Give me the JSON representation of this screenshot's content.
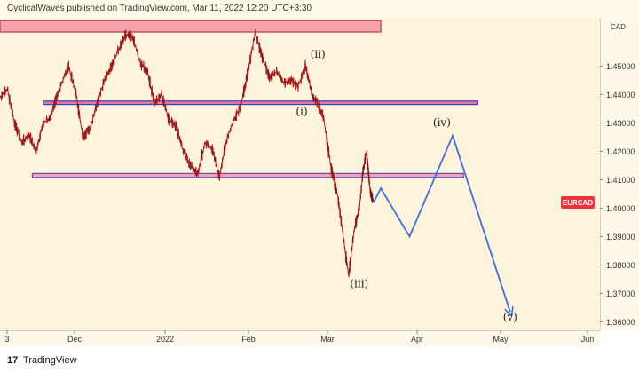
{
  "header": {
    "text": "CyclicalWaves published on TradingView.com, Mar 11, 2022 12:20 UTC+3:30"
  },
  "footer": {
    "logo": "17",
    "brand": "TradingView"
  },
  "chart_data": {
    "type": "line",
    "symbol": "EURCAD",
    "currency_label": "CAD",
    "x_ticks": [
      "3",
      "Dec",
      "2022",
      "Feb",
      "Mar",
      "Apr",
      "May",
      "Jun"
    ],
    "y_ticks": [
      1.45,
      1.44,
      1.43,
      1.42,
      1.41,
      1.4,
      1.39,
      1.38,
      1.37,
      1.36
    ],
    "y_tick_labels": [
      "1.45000",
      "1.44000",
      "1.43000",
      "1.42000",
      "1.41000",
      "1.40000",
      "1.39000",
      "1.38000",
      "1.37000",
      "1.36000"
    ],
    "ylim": [
      1.357,
      1.467
    ],
    "price_path": [
      [
        0,
        1.439
      ],
      [
        4,
        1.442
      ],
      [
        8,
        1.43
      ],
      [
        12,
        1.423
      ],
      [
        16,
        1.426
      ],
      [
        20,
        1.42
      ],
      [
        24,
        1.43
      ],
      [
        28,
        1.432
      ],
      [
        33,
        1.442
      ],
      [
        38,
        1.45
      ],
      [
        42,
        1.441
      ],
      [
        46,
        1.425
      ],
      [
        50,
        1.428
      ],
      [
        54,
        1.437
      ],
      [
        58,
        1.445
      ],
      [
        62,
        1.45
      ],
      [
        66,
        1.456
      ],
      [
        70,
        1.461
      ],
      [
        74,
        1.46
      ],
      [
        78,
        1.451
      ],
      [
        82,
        1.448
      ],
      [
        86,
        1.437
      ],
      [
        90,
        1.44
      ],
      [
        94,
        1.431
      ],
      [
        98,
        1.429
      ],
      [
        102,
        1.42
      ],
      [
        106,
        1.415
      ],
      [
        110,
        1.412
      ],
      [
        114,
        1.423
      ],
      [
        118,
        1.421
      ],
      [
        122,
        1.411
      ],
      [
        126,
        1.424
      ],
      [
        130,
        1.431
      ],
      [
        134,
        1.436
      ],
      [
        138,
        1.448
      ],
      [
        142,
        1.462
      ],
      [
        146,
        1.453
      ],
      [
        150,
        1.446
      ],
      [
        154,
        1.448
      ],
      [
        158,
        1.444
      ],
      [
        162,
        1.445
      ],
      [
        166,
        1.443
      ],
      [
        170,
        1.45
      ],
      [
        174,
        1.439
      ],
      [
        176,
        1.438
      ],
      [
        180,
        1.432
      ],
      [
        184,
        1.415
      ],
      [
        188,
        1.404
      ],
      [
        191,
        1.39
      ],
      [
        194,
        1.376
      ],
      [
        197,
        1.392
      ],
      [
        200,
        1.4
      ],
      [
        202,
        1.413
      ],
      [
        204,
        1.42
      ],
      [
        206,
        1.406
      ],
      [
        208,
        1.402
      ]
    ],
    "projection": [
      [
        208,
        1.402
      ],
      [
        212,
        1.407
      ],
      [
        228,
        1.39
      ],
      [
        252,
        1.4255
      ],
      [
        284,
        1.3635
      ]
    ],
    "zones": [
      {
        "y1": 1.466,
        "y2": 1.462,
        "x1": 0,
        "x2": 212,
        "color": "#f4a3a8",
        "border": "#c22f66"
      },
      {
        "y1": 1.4377,
        "y2": 1.4365,
        "x1": 24,
        "x2": 266,
        "color": "#e07a9d",
        "border": "#3b3fbf"
      },
      {
        "y1": 1.4122,
        "y2": 1.4108,
        "x1": 18,
        "x2": 258,
        "color": "#f4a3a8",
        "border": "#5c4ccb"
      }
    ],
    "wave_labels": [
      {
        "text": "(ii)",
        "x": 177,
        "y": 1.453
      },
      {
        "text": "(i)",
        "x": 168,
        "y": 1.4328
      },
      {
        "text": "(iv)",
        "x": 246,
        "y": 1.4288
      },
      {
        "text": "(iii)",
        "x": 200,
        "y": 1.3722
      },
      {
        "text": "(v)",
        "x": 284,
        "y": 1.3605
      }
    ],
    "current_price": 1.402,
    "colors": {
      "price": "#d7262a",
      "projection": "#3f6de0",
      "badge": "#f0323c"
    },
    "grid": false
  }
}
